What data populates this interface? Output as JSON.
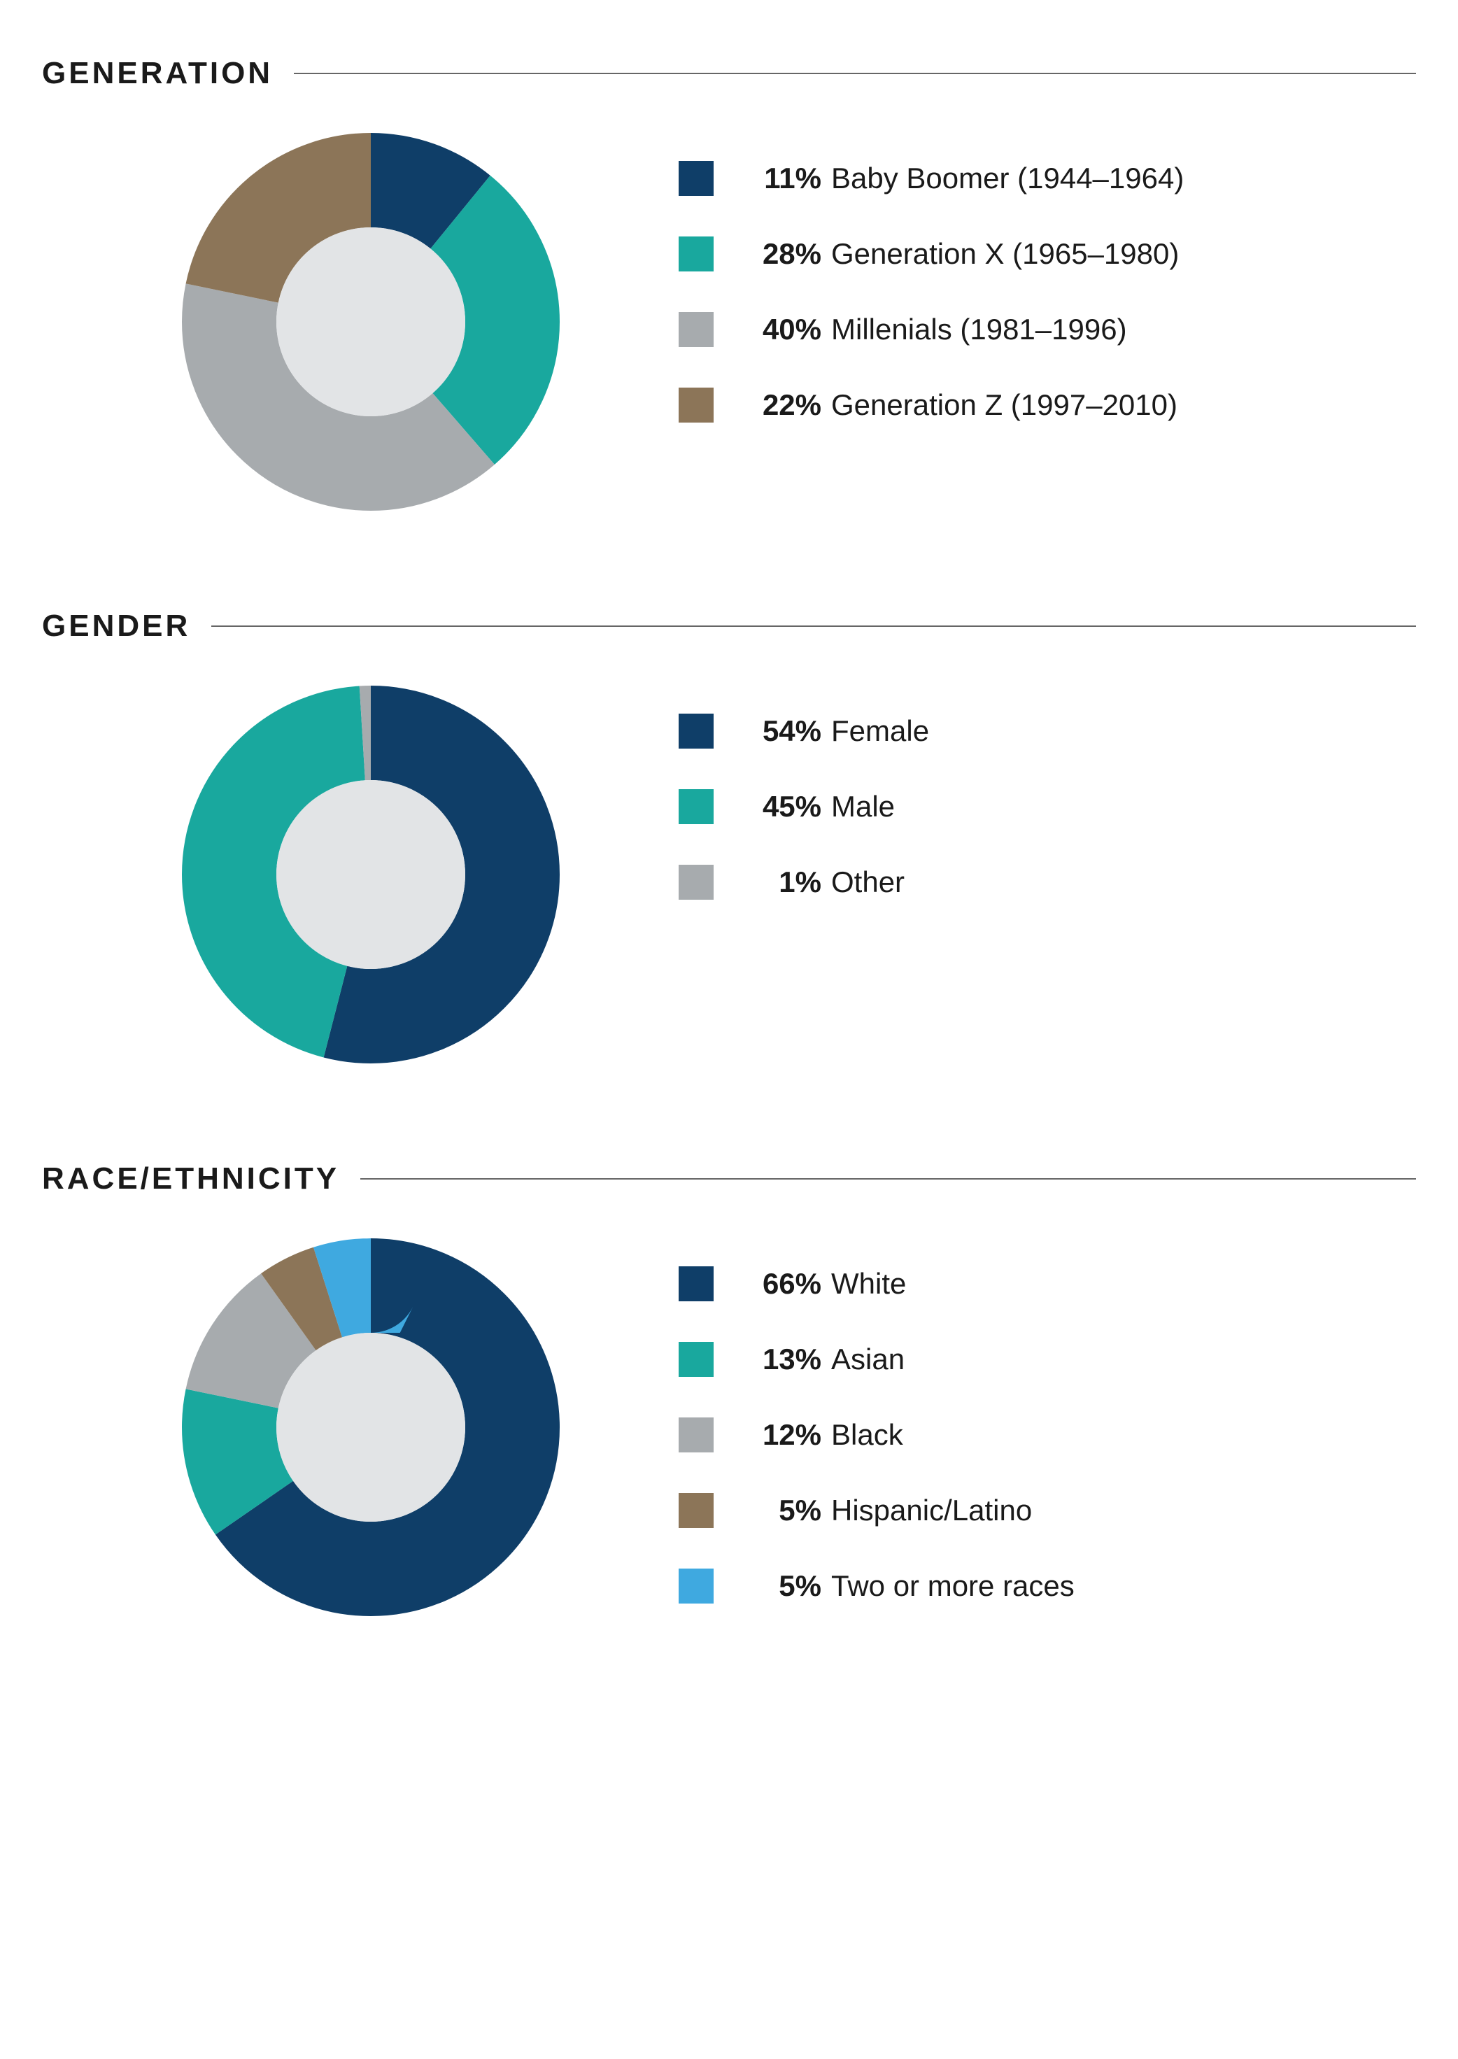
{
  "page": {
    "background_color": "#ffffff",
    "text_color": "#1a1a1a",
    "rule_color": "#666666",
    "title_fontsize": 44,
    "title_letterspacing": 4,
    "legend_fontsize": 42,
    "swatch_size": 50,
    "donut_outer_r": 50,
    "donut_inner_r": 25,
    "donut_inner_fill": "#e2e4e6",
    "legend_row_gap": 58
  },
  "sections": [
    {
      "id": "generation",
      "title": "GENERATION",
      "type": "donut",
      "slices": [
        {
          "value": 11,
          "color": "#0f3e68",
          "pct_label": "11%",
          "label": "Baby Boomer (1944–1964)"
        },
        {
          "value": 28,
          "color": "#19a89e",
          "pct_label": "28%",
          "label": "Generation X (1965–1980)"
        },
        {
          "value": 40,
          "color": "#a7abae",
          "pct_label": "40%",
          "label": "Millenials (1981–1996)"
        },
        {
          "value": 22,
          "color": "#8c7558",
          "pct_label": "22%",
          "label": "Generation Z (1997–2010)"
        }
      ]
    },
    {
      "id": "gender",
      "title": "GENDER",
      "type": "donut",
      "slices": [
        {
          "value": 54,
          "color": "#0f3e68",
          "pct_label": "54%",
          "label": "Female"
        },
        {
          "value": 45,
          "color": "#19a89e",
          "pct_label": "45%",
          "label": "Male"
        },
        {
          "value": 1,
          "color": "#a7abae",
          "pct_label": "1%",
          "label": "Other"
        }
      ]
    },
    {
      "id": "race",
      "title": "RACE/ETHNICITY",
      "type": "donut",
      "slices": [
        {
          "value": 66,
          "color": "#0f3e68",
          "pct_label": "66%",
          "label": "White"
        },
        {
          "value": 13,
          "color": "#19a89e",
          "pct_label": "13%",
          "label": "Asian"
        },
        {
          "value": 12,
          "color": "#a7abae",
          "pct_label": "12%",
          "label": "Black"
        },
        {
          "value": 5,
          "color": "#8c7558",
          "pct_label": "5%",
          "label": "Hispanic/Latino"
        },
        {
          "value": 5,
          "color": "#3fa9e0",
          "pct_label": "5%",
          "label": "Two or more races"
        }
      ]
    }
  ]
}
